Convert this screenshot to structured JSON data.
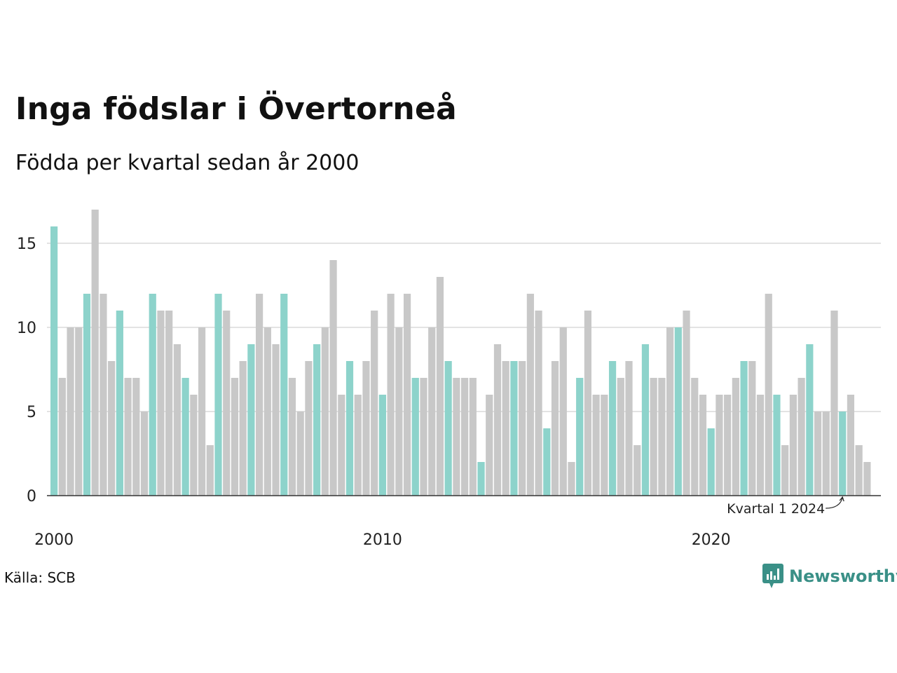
{
  "title": "Inga födslar i Övertorneå",
  "subtitle": "Födda per kvartal sedan år 2000",
  "source": "Källa: SCB",
  "brand": "Newsworthy",
  "colors": {
    "highlight": "#8dd3cb",
    "bar": "#c8c8c8",
    "grid": "#e3e3e3",
    "axis": "#333333",
    "brand": "#3a9087"
  },
  "chart_data": {
    "type": "bar",
    "start_year": 2000,
    "ylim": [
      0,
      17
    ],
    "yticks": [
      0,
      5,
      10,
      15
    ],
    "xtick_labels": [
      "2000",
      "2010",
      "2020"
    ],
    "highlight_quarter": 1,
    "annotation": "Kvartal 1 2024",
    "values": [
      16,
      7,
      10,
      10,
      12,
      17,
      12,
      8,
      11,
      7,
      7,
      5,
      12,
      11,
      11,
      9,
      7,
      6,
      10,
      3,
      12,
      11,
      7,
      8,
      9,
      12,
      10,
      9,
      12,
      7,
      5,
      8,
      9,
      10,
      14,
      6,
      8,
      6,
      8,
      11,
      6,
      12,
      10,
      12,
      7,
      7,
      10,
      13,
      8,
      7,
      7,
      7,
      2,
      6,
      9,
      8,
      8,
      8,
      12,
      11,
      4,
      8,
      10,
      2,
      7,
      11,
      6,
      6,
      8,
      7,
      8,
      3,
      9,
      7,
      7,
      10,
      10,
      11,
      7,
      6,
      4,
      6,
      6,
      7,
      8,
      8,
      6,
      12,
      6,
      3,
      6,
      7,
      9,
      5,
      5,
      11,
      5,
      6,
      3,
      2
    ],
    "grid": true,
    "legend": "none"
  }
}
